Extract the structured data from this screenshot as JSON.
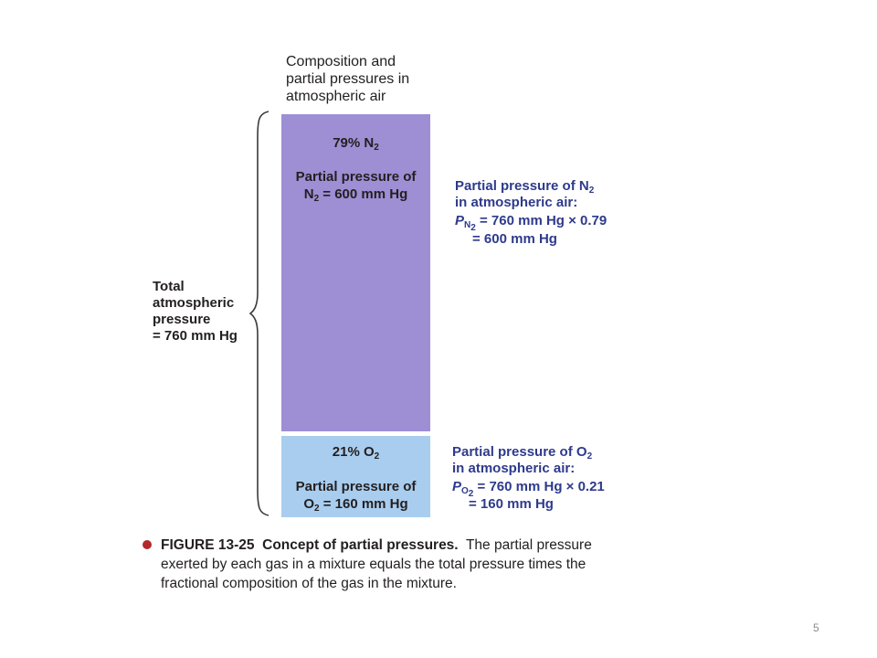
{
  "heading": {
    "line1": "Composition and",
    "line2": "partial pressures in",
    "line3": "atmospheric air"
  },
  "colors": {
    "n2_bar": "#9e8ed4",
    "o2_bar": "#a9cdee",
    "annotation_text": "#2e3a8c",
    "bullet": "#b3282d"
  },
  "n2_segment": {
    "percent_value": "79%",
    "gas_symbol": "N",
    "gas_subscript": "2",
    "partial_line1": "Partial pressure of",
    "partial_line2_value": " = 600 mm Hg"
  },
  "o2_segment": {
    "percent_value": "21%",
    "gas_symbol": "O",
    "gas_subscript": "2",
    "partial_line1": "Partial pressure of",
    "partial_line2_value": " = 160 mm Hg"
  },
  "n2_calculation": {
    "line1_prefix": "Partial pressure of ",
    "line2": "in atmospheric air:",
    "p_symbol": "P",
    "p_subscript": "N",
    "p_subscript2": "2",
    "line3_rest": "= 760 mm Hg × 0.79",
    "line4": "= 600 mm Hg"
  },
  "o2_calculation": {
    "line1_prefix": "Partial pressure of ",
    "line2": "in atmospheric air:",
    "p_symbol": "P",
    "p_subscript": "O",
    "p_subscript2": "2",
    "line3_rest": "= 760 mm Hg × 0.21",
    "line4": "= 160 mm Hg"
  },
  "total_label": {
    "line1": "Total",
    "line2": "atmospheric",
    "line3": "pressure",
    "line4": "= 760 mm Hg"
  },
  "caption": {
    "figure_label": "FIGURE 13-25",
    "title": "Concept of partial pressures.",
    "body": "The partial pressure exerted by each gas in a mixture equals the total pressure times the fractional composition of the gas in the mixture."
  },
  "page_number": "5"
}
